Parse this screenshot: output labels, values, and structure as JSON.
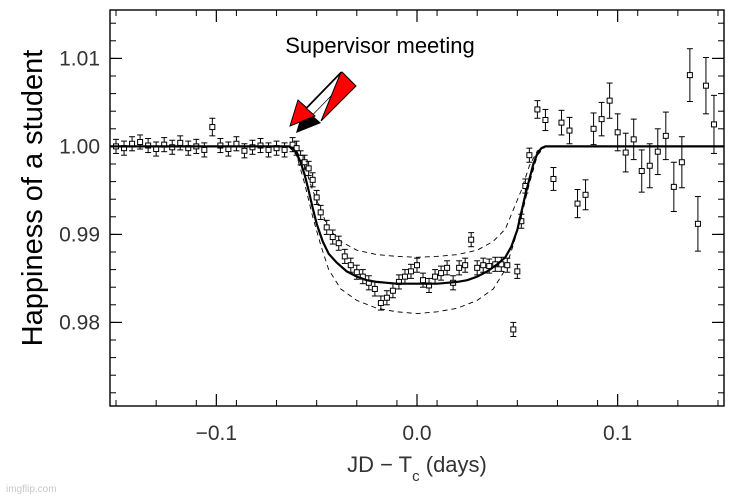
{
  "watermark": "imgflip.com",
  "chart_data": {
    "type": "scatter",
    "title": "",
    "annotation": "Supervisor meeting",
    "xlabel_parts": [
      "JD − T",
      "c",
      " (days)"
    ],
    "ylabel": "Happiness of a student",
    "xlim": [
      -0.153,
      0.153
    ],
    "ylim": [
      0.9705,
      1.0155
    ],
    "xticks": [
      -0.1,
      0.0,
      0.1
    ],
    "xtick_labels": [
      "−0.1",
      "0.0",
      "0.1"
    ],
    "yticks": [
      0.98,
      0.99,
      1.0,
      1.01
    ],
    "ytick_labels": [
      "0.98",
      "0.99",
      "1.00",
      "1.01"
    ],
    "arrow_color": "#ff0000",
    "series": [
      {
        "kind": "points",
        "x": [
          -0.15,
          -0.146,
          -0.142,
          -0.138,
          -0.134,
          -0.13,
          -0.126,
          -0.122,
          -0.118,
          -0.114,
          -0.11,
          -0.106,
          -0.102,
          -0.098,
          -0.094,
          -0.09,
          -0.086,
          -0.082,
          -0.078,
          -0.074,
          -0.07,
          -0.066,
          -0.062,
          -0.06,
          -0.058,
          -0.056,
          -0.054,
          -0.052,
          -0.05,
          -0.048,
          -0.045,
          -0.042,
          -0.039,
          -0.036,
          -0.033,
          -0.03,
          -0.027,
          -0.024,
          -0.021,
          -0.018,
          -0.015,
          -0.012,
          -0.009,
          -0.006,
          -0.003,
          0.0,
          0.003,
          0.006,
          0.009,
          0.012,
          0.015,
          0.018,
          0.021,
          0.024,
          0.027,
          0.03,
          0.033,
          0.036,
          0.039,
          0.042,
          0.045,
          0.048,
          0.05,
          0.052,
          0.054,
          0.056,
          0.06,
          0.064,
          0.068,
          0.072,
          0.076,
          0.08,
          0.084,
          0.088,
          0.092,
          0.096,
          0.1,
          0.104,
          0.108,
          0.112,
          0.116,
          0.12,
          0.124,
          0.128,
          0.132,
          0.136,
          0.14,
          0.144,
          0.148
        ],
        "y": [
          1.0,
          0.9998,
          1.0003,
          1.0005,
          1.0001,
          0.9997,
          1.0002,
          0.9999,
          1.0004,
          0.9998,
          1.0,
          0.9996,
          1.0022,
          1.0001,
          0.9997,
          1.0003,
          0.9995,
          0.9999,
          1.0001,
          0.9996,
          0.9998,
          0.9996,
          1.0002,
          0.9998,
          0.9987,
          0.9982,
          0.9975,
          0.9962,
          0.9942,
          0.9925,
          0.9908,
          0.9897,
          0.989,
          0.9875,
          0.9865,
          0.9857,
          0.9852,
          0.9845,
          0.9838,
          0.9822,
          0.9828,
          0.9836,
          0.9846,
          0.9852,
          0.9858,
          0.9865,
          0.9848,
          0.9842,
          0.9852,
          0.9856,
          0.9862,
          0.9845,
          0.9862,
          0.9865,
          0.9894,
          0.9862,
          0.9865,
          0.9864,
          0.9866,
          0.9866,
          0.9865,
          0.9792,
          0.9858,
          0.9915,
          0.9955,
          0.999,
          1.0042,
          1.003,
          0.9963,
          1.0027,
          1.0018,
          0.9935,
          0.9945,
          1.002,
          1.0031,
          1.0052,
          1.0016,
          0.9993,
          1.0008,
          0.9972,
          0.9978,
          0.9994,
          1.0012,
          0.9954,
          0.9982,
          1.0081,
          0.9912,
          1.0069,
          1.0025
        ],
        "err": [
          0.0008,
          0.0008,
          0.0008,
          0.0008,
          0.0008,
          0.0008,
          0.0008,
          0.0008,
          0.0008,
          0.0008,
          0.0008,
          0.0008,
          0.001,
          0.0008,
          0.0008,
          0.0008,
          0.0008,
          0.0008,
          0.0008,
          0.0008,
          0.0008,
          0.0008,
          0.0008,
          0.0008,
          0.0008,
          0.0008,
          0.0008,
          0.0008,
          0.0008,
          0.0008,
          0.0008,
          0.0008,
          0.0008,
          0.0008,
          0.0008,
          0.0008,
          0.0008,
          0.0008,
          0.0008,
          0.0008,
          0.0008,
          0.0008,
          0.0008,
          0.0008,
          0.0008,
          0.0008,
          0.0008,
          0.0008,
          0.0008,
          0.0008,
          0.0008,
          0.0008,
          0.0008,
          0.0008,
          0.0008,
          0.0008,
          0.0008,
          0.0008,
          0.0008,
          0.0008,
          0.0008,
          0.0008,
          0.0008,
          0.0008,
          0.0008,
          0.0008,
          0.001,
          0.0012,
          0.0013,
          0.0014,
          0.0015,
          0.0016,
          0.0017,
          0.0018,
          0.0019,
          0.002,
          0.0021,
          0.0022,
          0.0023,
          0.0024,
          0.0025,
          0.0026,
          0.0027,
          0.0028,
          0.0029,
          0.003,
          0.0031,
          0.0032,
          0.0033
        ]
      },
      {
        "kind": "model",
        "x": [
          -0.153,
          -0.064,
          -0.062,
          -0.06,
          -0.058,
          -0.056,
          -0.054,
          -0.052,
          -0.05,
          -0.047,
          -0.044,
          -0.04,
          -0.035,
          -0.03,
          -0.025,
          -0.02,
          -0.015,
          -0.01,
          -0.005,
          0.0,
          0.005,
          0.01,
          0.015,
          0.02,
          0.025,
          0.03,
          0.035,
          0.04,
          0.044,
          0.047,
          0.05,
          0.052,
          0.054,
          0.056,
          0.058,
          0.06,
          0.062,
          0.064,
          0.153
        ],
        "y": [
          1.0,
          1.0,
          0.9998,
          0.9992,
          0.9982,
          0.9968,
          0.995,
          0.993,
          0.9912,
          0.9892,
          0.9878,
          0.9868,
          0.9858,
          0.9852,
          0.9848,
          0.9846,
          0.9845,
          0.9844,
          0.9844,
          0.9844,
          0.9844,
          0.9844,
          0.9845,
          0.9846,
          0.9848,
          0.9852,
          0.9858,
          0.9866,
          0.9874,
          0.9886,
          0.9905,
          0.9925,
          0.9945,
          0.9963,
          0.998,
          0.9992,
          0.9998,
          1.0,
          1.0
        ]
      },
      {
        "kind": "envelope-upper",
        "x": [
          -0.064,
          -0.06,
          -0.056,
          -0.052,
          -0.048,
          -0.044,
          -0.038,
          -0.03,
          -0.02,
          -0.01,
          0.0,
          0.01,
          0.02,
          0.03,
          0.038,
          0.044,
          0.048,
          0.052,
          0.056,
          0.06,
          0.064
        ],
        "y": [
          1.0,
          0.9995,
          0.9978,
          0.995,
          0.9928,
          0.9906,
          0.9892,
          0.9882,
          0.9877,
          0.9875,
          0.9874,
          0.9875,
          0.9877,
          0.9882,
          0.9892,
          0.9906,
          0.9928,
          0.995,
          0.9978,
          0.9995,
          1.0
        ]
      },
      {
        "kind": "envelope-lower",
        "x": [
          -0.064,
          -0.06,
          -0.056,
          -0.052,
          -0.048,
          -0.044,
          -0.038,
          -0.03,
          -0.02,
          -0.01,
          0.0,
          0.01,
          0.02,
          0.03,
          0.038,
          0.044,
          0.048,
          0.052,
          0.056,
          0.06,
          0.064
        ],
        "y": [
          1.0,
          0.999,
          0.9958,
          0.992,
          0.9888,
          0.986,
          0.9838,
          0.9825,
          0.9816,
          0.9812,
          0.981,
          0.9812,
          0.9816,
          0.9825,
          0.9838,
          0.986,
          0.9888,
          0.992,
          0.9958,
          0.999,
          1.0
        ]
      }
    ]
  }
}
